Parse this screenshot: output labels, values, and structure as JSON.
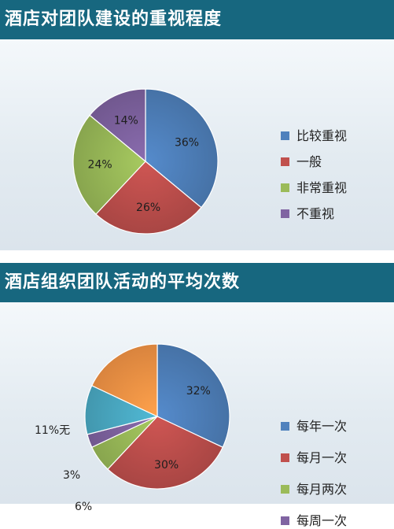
{
  "panels": [
    {
      "title": "酒店对团队建设的重视程度",
      "chart_data": {
        "type": "pie",
        "title": "酒店对团队建设的重视程度",
        "series": [
          {
            "values": [
              36,
              26,
              24,
              14
            ]
          }
        ],
        "categories": [
          "比较重视",
          "一般",
          "非常重视",
          "不重视"
        ],
        "value_labels": [
          "36%",
          "26%",
          "24%",
          "14%"
        ],
        "colors": [
          "#4f81bd",
          "#c0504d",
          "#9bbb59",
          "#8064a2"
        ],
        "legend": "right"
      }
    },
    {
      "title": "酒店组织团队活动的平均次数",
      "chart_data": {
        "type": "pie",
        "title": "酒店组织团队活动的平均次数",
        "series": [
          {
            "values": [
              32,
              30,
              6,
              3,
              11,
              18
            ]
          }
        ],
        "categories": [
          "每年一次",
          "每月一次",
          "每月两次",
          "每周一次",
          "无",
          ""
        ],
        "value_labels": [
          "32%",
          "30%",
          "6%",
          "3%",
          "11%无",
          ""
        ],
        "legend_entries": [
          "每年一次",
          "每月一次",
          "每月两次",
          "每周一次"
        ],
        "colors": [
          "#4f81bd",
          "#c0504d",
          "#9bbb59",
          "#8064a2",
          "#4bacc6",
          "#f79646"
        ],
        "legend": "right"
      }
    }
  ]
}
